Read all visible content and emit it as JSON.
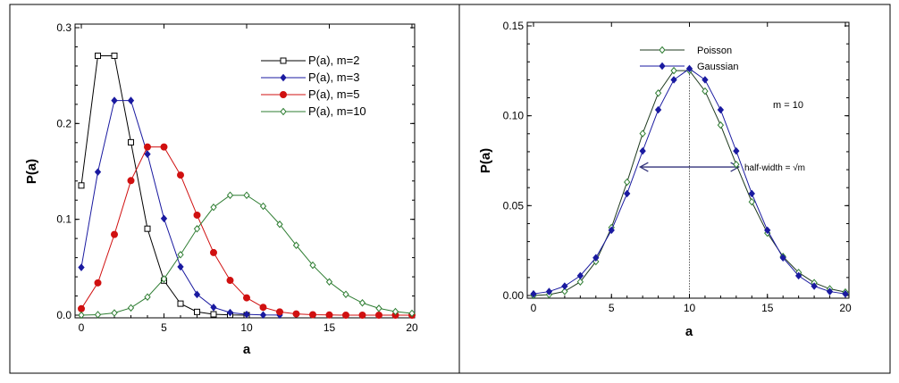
{
  "chart_data": [
    {
      "type": "line",
      "xlabel": "a",
      "ylabel": "P(a)",
      "xlim": [
        0,
        20
      ],
      "ylim": [
        0,
        0.3
      ],
      "xticks": [
        "0",
        "5",
        "10",
        "15",
        "20"
      ],
      "yticks": [
        "0.0",
        "0.1",
        "0.2",
        "0.3"
      ],
      "grid": false,
      "legend_position": "top-right",
      "series": [
        {
          "name": "P(a), m=2",
          "color": "#000000",
          "marker": "open-square",
          "x": [
            0,
            1,
            2,
            3,
            4,
            5,
            6,
            7,
            8,
            9,
            10
          ],
          "values": [
            0.1353,
            0.2707,
            0.2707,
            0.1804,
            0.0902,
            0.0361,
            0.012,
            0.0034,
            0.0009,
            0.0002,
            0.0
          ]
        },
        {
          "name": "P(a), m=3",
          "color": "#1a1aa0",
          "marker": "filled-diamond",
          "x": [
            0,
            1,
            2,
            3,
            4,
            5,
            6,
            7,
            8,
            9,
            10,
            11,
            12
          ],
          "values": [
            0.0498,
            0.1494,
            0.224,
            0.224,
            0.168,
            0.1008,
            0.0504,
            0.0216,
            0.0081,
            0.0027,
            0.0008,
            0.0002,
            0.0001
          ]
        },
        {
          "name": "P(a), m=5",
          "color": "#d01010",
          "marker": "filled-circle",
          "x": [
            0,
            1,
            2,
            3,
            4,
            5,
            6,
            7,
            8,
            9,
            10,
            11,
            12,
            13,
            14,
            15,
            16,
            17,
            18,
            19,
            20
          ],
          "values": [
            0.0067,
            0.0337,
            0.0842,
            0.1404,
            0.1755,
            0.1755,
            0.1462,
            0.1044,
            0.0653,
            0.0363,
            0.0181,
            0.0082,
            0.0034,
            0.0013,
            0.0005,
            0.0002,
            0.0,
            0.0,
            0.0,
            0.0,
            0.0
          ]
        },
        {
          "name": "P(a), m=10",
          "color": "#2e7d32",
          "marker": "open-diamond",
          "x": [
            0,
            1,
            2,
            3,
            4,
            5,
            6,
            7,
            8,
            9,
            10,
            11,
            12,
            13,
            14,
            15,
            16,
            17,
            18,
            19,
            20
          ],
          "values": [
            0.0,
            0.0005,
            0.0023,
            0.0076,
            0.0189,
            0.0378,
            0.0631,
            0.0901,
            0.1126,
            0.1251,
            0.1251,
            0.1137,
            0.0948,
            0.0729,
            0.0521,
            0.0347,
            0.0217,
            0.0128,
            0.0071,
            0.0037,
            0.0019
          ]
        }
      ]
    },
    {
      "type": "line",
      "xlabel": "a",
      "ylabel": "P(a)",
      "xlim": [
        0,
        20
      ],
      "ylim": [
        0,
        0.15
      ],
      "xticks": [
        "0",
        "5",
        "10",
        "15",
        "20"
      ],
      "yticks": [
        "0.00",
        "0.05",
        "0.10",
        "0.15"
      ],
      "grid": false,
      "legend_position": "top-right",
      "annotations": {
        "m_label": "m = 10",
        "halfwidth_label": "half-width = √m",
        "arrow_from": 6.84,
        "arrow_to": 13.16,
        "arrow_y": 0.0715,
        "vline_x": 10
      },
      "series": [
        {
          "name": "Poisson",
          "color": "#2e7d32",
          "marker": "open-diamond",
          "x": [
            0,
            1,
            2,
            3,
            4,
            5,
            6,
            7,
            8,
            9,
            10,
            11,
            12,
            13,
            14,
            15,
            16,
            17,
            18,
            19,
            20
          ],
          "values": [
            0.0,
            0.0005,
            0.0023,
            0.0076,
            0.0189,
            0.0378,
            0.0631,
            0.0901,
            0.1126,
            0.1251,
            0.1251,
            0.1137,
            0.0948,
            0.0729,
            0.0521,
            0.0347,
            0.0217,
            0.0128,
            0.0071,
            0.0037,
            0.0019
          ]
        },
        {
          "name": "Gaussian",
          "color": "#1a1aa0",
          "marker": "filled-diamond",
          "x": [
            0,
            1,
            2,
            3,
            4,
            5,
            6,
            7,
            8,
            9,
            10,
            11,
            12,
            13,
            14,
            15,
            16,
            17,
            18,
            19,
            20
          ],
          "values": [
            0.0009,
            0.0022,
            0.0052,
            0.011,
            0.021,
            0.0363,
            0.0567,
            0.0804,
            0.1033,
            0.12,
            0.1262,
            0.12,
            0.1033,
            0.0804,
            0.0567,
            0.0363,
            0.021,
            0.011,
            0.0052,
            0.0022,
            0.0009
          ]
        }
      ]
    }
  ]
}
